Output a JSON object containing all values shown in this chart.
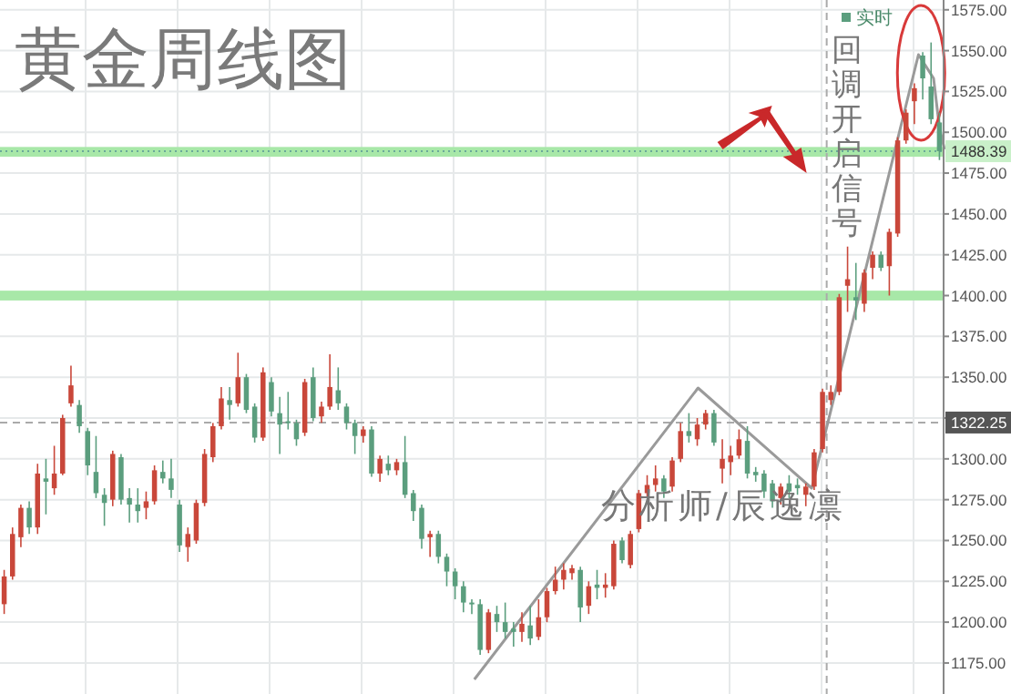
{
  "chart_data": {
    "type": "candlestick",
    "title": "黄金周线图",
    "annotations": [
      "回调开启信号",
      "分析师/辰逸凛"
    ],
    "ylim": [
      1156,
      1581
    ],
    "yticks": [
      {
        "value": 1175,
        "label": "1175.00"
      },
      {
        "value": 1200,
        "label": "1200.00"
      },
      {
        "value": 1225,
        "label": "1225.00"
      },
      {
        "value": 1250,
        "label": "1250.00"
      },
      {
        "value": 1275,
        "label": "1275.00"
      },
      {
        "value": 1300,
        "label": "1300.00"
      },
      {
        "value": 1325,
        "label": null
      },
      {
        "value": 1350,
        "label": "1350.00"
      },
      {
        "value": 1375,
        "label": "1375.00"
      },
      {
        "value": 1400,
        "label": "1400.00"
      },
      {
        "value": 1425,
        "label": "1425.00"
      },
      {
        "value": 1450,
        "label": "1450.00"
      },
      {
        "value": 1475,
        "label": "1475.00"
      },
      {
        "value": 1500,
        "label": "1500.00"
      },
      {
        "value": 1525,
        "label": "1525.00"
      },
      {
        "value": 1550,
        "label": "1550.00"
      },
      {
        "value": 1575,
        "label": "1575.00"
      }
    ],
    "tick_labels": "y",
    "grid": true,
    "legend": "top right",
    "categories": [
      null,
      null,
      null,
      null,
      null,
      null,
      null,
      null,
      null,
      null,
      null,
      null,
      null,
      null,
      null,
      null,
      null,
      null,
      null,
      null,
      null,
      null,
      null,
      null,
      null,
      null,
      null,
      null,
      null,
      null,
      null,
      null,
      null,
      null,
      null,
      null,
      null,
      null,
      null,
      null,
      null,
      null,
      null,
      null,
      null,
      null,
      null,
      null,
      null,
      null,
      null,
      null,
      null,
      null,
      null,
      null,
      null,
      null,
      null,
      null,
      null,
      null,
      null,
      null,
      null,
      null,
      null,
      null,
      null,
      null,
      null,
      null,
      null,
      null,
      null,
      null,
      null,
      null,
      null,
      null,
      null,
      null,
      null,
      null,
      null,
      null,
      null,
      null,
      null,
      null,
      null,
      null,
      null,
      null,
      null,
      null,
      null,
      null,
      null,
      null,
      null,
      null,
      null,
      null,
      null,
      null,
      null,
      null,
      null,
      null,
      null,
      null,
      null
    ],
    "series": [
      {
        "name": "实时",
        "color": "#5b9e7e",
        "ohlc": [
          [
            1211,
            1232,
            1205,
            1228
          ],
          [
            1228,
            1258,
            1226,
            1254
          ],
          [
            1252,
            1272,
            1246,
            1270
          ],
          [
            1270,
            1274,
            1254,
            1258
          ],
          [
            1258,
            1297,
            1254,
            1291
          ],
          [
            1288,
            1300,
            1266,
            1286
          ],
          [
            1282,
            1308,
            1278,
            1291
          ],
          [
            1291,
            1327,
            1290,
            1325
          ],
          [
            1334,
            1357,
            1332,
            1345
          ],
          [
            1333,
            1336,
            1316,
            1320
          ],
          [
            1317,
            1319,
            1290,
            1296
          ],
          [
            1292,
            1314,
            1276,
            1279
          ],
          [
            1278,
            1282,
            1259,
            1273
          ],
          [
            1275,
            1305,
            1271,
            1303
          ],
          [
            1301,
            1303,
            1272,
            1275
          ],
          [
            1276,
            1282,
            1261,
            1272
          ],
          [
            1272,
            1282,
            1261,
            1268
          ],
          [
            1270,
            1280,
            1263,
            1274
          ],
          [
            1274,
            1296,
            1272,
            1293
          ],
          [
            1292,
            1299,
            1285,
            1288
          ],
          [
            1288,
            1300,
            1276,
            1281
          ],
          [
            1272,
            1275,
            1243,
            1247
          ],
          [
            1246,
            1258,
            1237,
            1254
          ],
          [
            1250,
            1275,
            1248,
            1273
          ],
          [
            1273,
            1306,
            1271,
            1303
          ],
          [
            1301,
            1322,
            1298,
            1320
          ],
          [
            1320,
            1344,
            1318,
            1337
          ],
          [
            1336,
            1344,
            1324,
            1333
          ],
          [
            1334,
            1365,
            1332,
            1350
          ],
          [
            1350,
            1352,
            1328,
            1330
          ],
          [
            1332,
            1334,
            1310,
            1313
          ],
          [
            1313,
            1356,
            1311,
            1353
          ],
          [
            1347,
            1350,
            1326,
            1329
          ],
          [
            1328,
            1338,
            1303,
            1321
          ],
          [
            1323,
            1341,
            1318,
            1322
          ],
          [
            1322,
            1324,
            1308,
            1312
          ],
          [
            1316,
            1349,
            1314,
            1347
          ],
          [
            1350,
            1356,
            1323,
            1325
          ],
          [
            1326,
            1335,
            1322,
            1332
          ],
          [
            1332,
            1364,
            1330,
            1344
          ],
          [
            1342,
            1356,
            1330,
            1334
          ],
          [
            1332,
            1334,
            1318,
            1322
          ],
          [
            1322,
            1324,
            1303,
            1314
          ],
          [
            1314,
            1320,
            1310,
            1318
          ],
          [
            1318,
            1320,
            1289,
            1291
          ],
          [
            1291,
            1302,
            1286,
            1300
          ],
          [
            1297,
            1302,
            1290,
            1293
          ],
          [
            1293,
            1300,
            1290,
            1298
          ],
          [
            1298,
            1314,
            1276,
            1278
          ],
          [
            1279,
            1281,
            1262,
            1268
          ],
          [
            1270,
            1272,
            1245,
            1251
          ],
          [
            1252,
            1256,
            1240,
            1254
          ],
          [
            1254,
            1256,
            1236,
            1240
          ],
          [
            1240,
            1242,
            1222,
            1231
          ],
          [
            1231,
            1233,
            1214,
            1222
          ],
          [
            1222,
            1225,
            1206,
            1212
          ],
          [
            1212,
            1214,
            1205,
            1211
          ],
          [
            1211,
            1214,
            1180,
            1183
          ],
          [
            1183,
            1208,
            1181,
            1206
          ],
          [
            1205,
            1210,
            1194,
            1200
          ],
          [
            1200,
            1212,
            1190,
            1194
          ],
          [
            1196,
            1200,
            1185,
            1194
          ],
          [
            1194,
            1206,
            1188,
            1199
          ],
          [
            1198,
            1210,
            1186,
            1190
          ],
          [
            1191,
            1214,
            1189,
            1203
          ],
          [
            1203,
            1221,
            1200,
            1219
          ],
          [
            1219,
            1234,
            1217,
            1226
          ],
          [
            1226,
            1236,
            1220,
            1232
          ],
          [
            1230,
            1235,
            1226,
            1233
          ],
          [
            1232,
            1234,
            1200,
            1209
          ],
          [
            1210,
            1225,
            1205,
            1222
          ],
          [
            1223,
            1232,
            1214,
            1221
          ],
          [
            1221,
            1230,
            1215,
            1223
          ],
          [
            1222,
            1250,
            1220,
            1248
          ],
          [
            1250,
            1252,
            1236,
            1238
          ],
          [
            1235,
            1256,
            1233,
            1254
          ],
          [
            1257,
            1281,
            1255,
            1279
          ],
          [
            1279,
            1290,
            1277,
            1284
          ],
          [
            1284,
            1296,
            1280,
            1288
          ],
          [
            1288,
            1290,
            1276,
            1280
          ],
          [
            1283,
            1301,
            1280,
            1299
          ],
          [
            1300,
            1322,
            1298,
            1317
          ],
          [
            1317,
            1328,
            1310,
            1314
          ],
          [
            1312,
            1325,
            1308,
            1321
          ],
          [
            1321,
            1330,
            1318,
            1328
          ],
          [
            1328,
            1330,
            1308,
            1310
          ],
          [
            1294,
            1312,
            1285,
            1300
          ],
          [
            1298,
            1308,
            1290,
            1302
          ],
          [
            1302,
            1318,
            1300,
            1312
          ],
          [
            1311,
            1320,
            1288,
            1291
          ],
          [
            1292,
            1295,
            1286,
            1290
          ],
          [
            1291,
            1293,
            1276,
            1280
          ],
          [
            1285,
            1287,
            1270,
            1274
          ],
          [
            1276,
            1285,
            1272,
            1283
          ],
          [
            1285,
            1290,
            1276,
            1280
          ],
          [
            1284,
            1288,
            1278,
            1282
          ],
          [
            1278,
            1285,
            1271,
            1283
          ],
          [
            1283,
            1306,
            1281,
            1304
          ],
          [
            1306,
            1343,
            1304,
            1341
          ],
          [
            1336,
            1345,
            1333,
            1341
          ],
          [
            1341,
            1401,
            1339,
            1399
          ],
          [
            1406,
            1430,
            1390,
            1410
          ],
          [
            1399,
            1420,
            1385,
            1397
          ],
          [
            1395,
            1416,
            1390,
            1414
          ],
          [
            1417,
            1427,
            1410,
            1425
          ],
          [
            1425,
            1427,
            1415,
            1417
          ],
          [
            1418,
            1441,
            1400,
            1439
          ],
          [
            1438,
            1497,
            1436,
            1495
          ],
          [
            1495,
            1514,
            1493,
            1512
          ],
          [
            1519,
            1530,
            1505,
            1527
          ],
          [
            1547,
            1549,
            1520,
            1533
          ],
          [
            1528,
            1555,
            1505,
            1508
          ],
          [
            1506,
            1512,
            1483,
            1488.39
          ]
        ],
        "colors": [
          "#c9473a",
          "#c9473a",
          "#c9473a",
          "#5b9e7e",
          "#c9473a",
          "#5b9e7e",
          "#c9473a",
          "#c9473a",
          "#c9473a",
          "#5b9e7e",
          "#5b9e7e",
          "#5b9e7e",
          "#5b9e7e",
          "#c9473a",
          "#5b9e7e",
          "#5b9e7e",
          "#5b9e7e",
          "#c9473a",
          "#c9473a",
          "#5b9e7e",
          "#5b9e7e",
          "#5b9e7e",
          "#c9473a",
          "#c9473a",
          "#c9473a",
          "#c9473a",
          "#c9473a",
          "#5b9e7e",
          "#c9473a",
          "#5b9e7e",
          "#5b9e7e",
          "#c9473a",
          "#5b9e7e",
          "#5b9e7e",
          "#5b9e7e",
          "#5b9e7e",
          "#c9473a",
          "#5b9e7e",
          "#c9473a",
          "#c9473a",
          "#5b9e7e",
          "#5b9e7e",
          "#5b9e7e",
          "#c9473a",
          "#5b9e7e",
          "#c9473a",
          "#5b9e7e",
          "#c9473a",
          "#5b9e7e",
          "#5b9e7e",
          "#5b9e7e",
          "#c9473a",
          "#5b9e7e",
          "#5b9e7e",
          "#5b9e7e",
          "#5b9e7e",
          "#5b9e7e",
          "#5b9e7e",
          "#c9473a",
          "#5b9e7e",
          "#5b9e7e",
          "#5b9e7e",
          "#c9473a",
          "#5b9e7e",
          "#c9473a",
          "#c9473a",
          "#c9473a",
          "#c9473a",
          "#c9473a",
          "#5b9e7e",
          "#c9473a",
          "#5b9e7e",
          "#c9473a",
          "#c9473a",
          "#5b9e7e",
          "#c9473a",
          "#c9473a",
          "#c9473a",
          "#c9473a",
          "#5b9e7e",
          "#c9473a",
          "#c9473a",
          "#5b9e7e",
          "#c9473a",
          "#c9473a",
          "#5b9e7e",
          "#c9473a",
          "#c9473a",
          "#c9473a",
          "#5b9e7e",
          "#5b9e7e",
          "#5b9e7e",
          "#5b9e7e",
          "#c9473a",
          "#5b9e7e",
          "#5b9e7e",
          "#c9473a",
          "#c9473a",
          "#c9473a",
          "#c9473a",
          "#c9473a",
          "#c9473a",
          "#5b9e7e",
          "#c9473a",
          "#c9473a",
          "#5b9e7e",
          "#c9473a",
          "#c9473a",
          "#c9473a",
          "#c9473a",
          "#5b9e7e",
          "#5b9e7e",
          "#5b9e7e"
        ]
      }
    ],
    "ref_lines": [
      {
        "axis": "y",
        "value": 1488.39,
        "label": "1488.39",
        "color": "#6aa89a",
        "line_style": "dotted"
      },
      {
        "axis": "y",
        "value": 1322.25,
        "label": "1322.25",
        "color": "#aaaaaa",
        "line_style": "dashed"
      }
    ],
    "bands": [
      {
        "axis": "y",
        "from": 1397,
        "to": 1403,
        "color": "#a8e8a8"
      },
      {
        "axis": "y",
        "from": 1485,
        "to": 1491,
        "color": "#a8e8a8"
      }
    ]
  }
}
